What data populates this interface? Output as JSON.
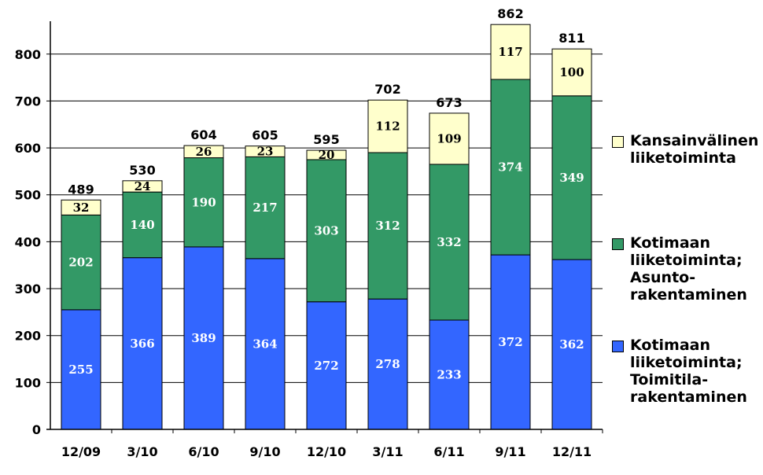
{
  "chart_data": {
    "type": "bar",
    "stacked": true,
    "categories": [
      "12/09",
      "3/10",
      "6/10",
      "9/10",
      "12/10",
      "3/11",
      "6/11",
      "9/11",
      "12/11"
    ],
    "series": [
      {
        "name": "Kotimaan\nliiketoiminta;\nToimitila-\nrakentaminen",
        "color": "#3366ff",
        "label_color": "#ffffff",
        "values": [
          255,
          366,
          389,
          364,
          272,
          278,
          233,
          372,
          362
        ]
      },
      {
        "name": "Kotimaan\nliiketoiminta;\nAsunto-\nrakentaminen",
        "color": "#339966",
        "label_color": "#ffffff",
        "values": [
          202,
          140,
          190,
          217,
          303,
          312,
          332,
          374,
          349
        ]
      },
      {
        "name": "Kansainvälinen\nliiketoiminta",
        "color": "#ffffcc",
        "label_color": "#000000",
        "values": [
          32,
          24,
          26,
          23,
          20,
          112,
          109,
          117,
          100
        ]
      }
    ],
    "totals": [
      489,
      530,
      604,
      605,
      595,
      702,
      673,
      862,
      811
    ],
    "yticks": [
      0,
      100,
      200,
      300,
      400,
      500,
      600,
      700,
      800
    ],
    "ylim": [
      0,
      870
    ],
    "grid": true,
    "legend_position": "right"
  }
}
